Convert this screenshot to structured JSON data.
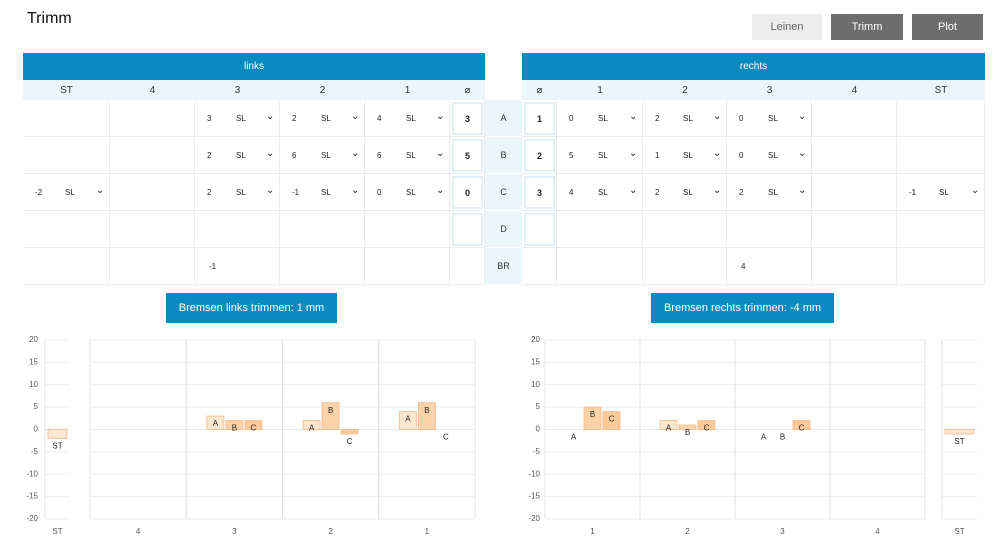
{
  "header": {
    "title": "Trimm",
    "buttons": [
      "Leinen",
      "Trimm",
      "Plot"
    ]
  },
  "tables": {
    "row_labels": [
      "A",
      "B",
      "C",
      "D",
      "BR"
    ],
    "left": {
      "title": "links",
      "columns": [
        "ST",
        "4",
        "3",
        "2",
        "1",
        "⌀"
      ],
      "rows": [
        [
          null,
          null,
          {
            "value": 3,
            "unit": "SL"
          },
          {
            "value": 2,
            "unit": "SL"
          },
          {
            "value": 4,
            "unit": "SL"
          },
          3
        ],
        [
          null,
          null,
          {
            "value": 2,
            "unit": "SL"
          },
          {
            "value": 6,
            "unit": "SL"
          },
          {
            "value": 6,
            "unit": "SL"
          },
          5
        ],
        [
          {
            "value": -2,
            "unit": "SL"
          },
          null,
          {
            "value": 2,
            "unit": "SL"
          },
          {
            "value": -1,
            "unit": "SL"
          },
          {
            "value": 0,
            "unit": "SL"
          },
          0
        ],
        [
          null,
          null,
          null,
          null,
          null,
          null
        ],
        [
          null,
          null,
          -1,
          null,
          null,
          null
        ]
      ]
    },
    "right": {
      "title": "rechts",
      "columns": [
        "⌀",
        "1",
        "2",
        "3",
        "4",
        "ST"
      ],
      "rows": [
        [
          1,
          {
            "value": 0,
            "unit": "SL"
          },
          {
            "value": 2,
            "unit": "SL"
          },
          {
            "value": 0,
            "unit": "SL"
          },
          null,
          null
        ],
        [
          2,
          {
            "value": 5,
            "unit": "SL"
          },
          {
            "value": 1,
            "unit": "SL"
          },
          {
            "value": 0,
            "unit": "SL"
          },
          null,
          null
        ],
        [
          3,
          {
            "value": 4,
            "unit": "SL"
          },
          {
            "value": 2,
            "unit": "SL"
          },
          {
            "value": 2,
            "unit": "SL"
          },
          null,
          {
            "value": -1,
            "unit": "SL"
          }
        ],
        [
          null,
          null,
          null,
          null,
          null,
          null
        ],
        [
          null,
          null,
          null,
          4,
          null,
          null
        ]
      ]
    }
  },
  "trim_buttons": [
    "Bremsen links trimmen: 1 mm",
    "Bremsen rechts trimmen: -4 mm"
  ],
  "chart_data": [
    {
      "type": "bar",
      "categories": [
        "ST",
        "4",
        "3",
        "2",
        "1"
      ],
      "series": [
        {
          "name": "A",
          "color": "#fde6cf",
          "values": [
            null,
            null,
            3,
            2,
            4
          ]
        },
        {
          "name": "B",
          "color": "#fcd2a8",
          "values": [
            null,
            null,
            2,
            6,
            6
          ]
        },
        {
          "name": "C",
          "color": "#fcca9a",
          "values": [
            null,
            null,
            2,
            -1,
            0
          ]
        },
        {
          "name": "ST",
          "color": "#fde6cf",
          "values": [
            -2,
            null,
            null,
            null,
            null
          ]
        }
      ],
      "ylim": [
        -20,
        20
      ],
      "yticks": [
        -20,
        -15,
        -10,
        -5,
        0,
        5,
        10,
        15,
        20
      ],
      "grid": true
    },
    {
      "type": "bar",
      "categories": [
        "1",
        "2",
        "3",
        "4",
        "ST"
      ],
      "series": [
        {
          "name": "A",
          "color": "#fde6cf",
          "values": [
            0,
            2,
            0,
            null,
            null
          ]
        },
        {
          "name": "B",
          "color": "#fcd2a8",
          "values": [
            5,
            1,
            0,
            null,
            null
          ]
        },
        {
          "name": "C",
          "color": "#fcca9a",
          "values": [
            4,
            2,
            2,
            null,
            null
          ]
        },
        {
          "name": "ST",
          "color": "#fde6cf",
          "values": [
            null,
            null,
            null,
            null,
            -1
          ]
        }
      ],
      "ylim": [
        -20,
        20
      ],
      "yticks": [
        -20,
        -15,
        -10,
        -5,
        0,
        5,
        10,
        15,
        20
      ],
      "grid": true
    }
  ]
}
